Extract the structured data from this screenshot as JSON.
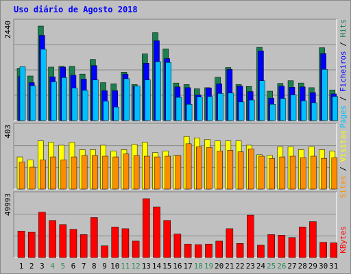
{
  "title": "Uso diário de Agosto 2018",
  "colors": {
    "hits": "#1b7f4f",
    "files": "#0000ff",
    "pages": "#00bfff",
    "visits": "#ffff00",
    "sites": "#ff8c00",
    "kbytes": "#ff0000",
    "day_normal": "#000000",
    "day_weekend": "#2e8b57",
    "grid": "#888888"
  },
  "chart_data": [
    {
      "type": "bar",
      "name": "hits-files-pages",
      "max_label": "2440",
      "legend": [
        "Pages",
        "Ficheiros",
        "Hits"
      ],
      "categories": [
        "1",
        "2",
        "3",
        "4",
        "5",
        "6",
        "7",
        "8",
        "9",
        "10",
        "11",
        "12",
        "13",
        "14",
        "15",
        "16",
        "17",
        "18",
        "19",
        "20",
        "21",
        "22",
        "23",
        "24",
        "25",
        "26",
        "27",
        "28",
        "29",
        "30",
        "31"
      ],
      "ylim": [
        0,
        2440
      ],
      "series": [
        {
          "name": "Hits",
          "values": [
            1350,
            1150,
            2440,
            1380,
            1400,
            1400,
            1200,
            1580,
            980,
            950,
            1250,
            930,
            1720,
            2270,
            1850,
            970,
            930,
            820,
            850,
            1120,
            1370,
            930,
            880,
            1890,
            760,
            960,
            1030,
            970,
            850,
            1880,
            790
          ]
        },
        {
          "name": "Ficheiros",
          "values": [
            1140,
            980,
            2200,
            1130,
            1380,
            1170,
            1070,
            1420,
            770,
            770,
            1200,
            890,
            1480,
            2060,
            1600,
            870,
            850,
            660,
            840,
            950,
            1320,
            890,
            750,
            1800,
            580,
            890,
            860,
            870,
            720,
            1730,
            690
          ]
        },
        {
          "name": "Pages",
          "values": [
            1390,
            900,
            1840,
            1000,
            1110,
            840,
            780,
            1050,
            500,
            350,
            1080,
            890,
            1050,
            1520,
            1500,
            600,
            420,
            610,
            620,
            700,
            710,
            480,
            530,
            1030,
            420,
            570,
            660,
            510,
            460,
            1320,
            620
          ]
        }
      ]
    },
    {
      "type": "bar",
      "name": "visits-sites",
      "max_label": "403",
      "legend": [
        "Sites",
        "Visitas"
      ],
      "categories": [
        "1",
        "2",
        "3",
        "4",
        "5",
        "6",
        "7",
        "8",
        "9",
        "10",
        "11",
        "12",
        "13",
        "14",
        "15",
        "16",
        "17",
        "18",
        "19",
        "20",
        "21",
        "22",
        "23",
        "24",
        "25",
        "26",
        "27",
        "28",
        "29",
        "30",
        "31"
      ],
      "ylim": [
        0,
        403
      ],
      "series": [
        {
          "name": "Visitas",
          "values": [
            220,
            200,
            330,
            320,
            300,
            320,
            270,
            270,
            300,
            260,
            270,
            305,
            320,
            250,
            260,
            230,
            360,
            350,
            340,
            330,
            330,
            330,
            300,
            235,
            230,
            290,
            290,
            270,
            290,
            270,
            260
          ]
        },
        {
          "name": "Sites",
          "values": [
            185,
            150,
            200,
            220,
            200,
            220,
            230,
            230,
            225,
            220,
            240,
            230,
            225,
            220,
            225,
            230,
            310,
            290,
            285,
            260,
            265,
            255,
            275,
            225,
            210,
            220,
            225,
            215,
            225,
            210,
            215
          ]
        }
      ]
    },
    {
      "type": "bar",
      "name": "kbytes",
      "max_label": "49993",
      "legend": [
        "KBytes"
      ],
      "categories": [
        "1",
        "2",
        "3",
        "4",
        "5",
        "6",
        "7",
        "8",
        "9",
        "10",
        "11",
        "12",
        "13",
        "14",
        "15",
        "16",
        "17",
        "18",
        "19",
        "20",
        "21",
        "22",
        "23",
        "24",
        "25",
        "26",
        "27",
        "28",
        "29",
        "30",
        "31"
      ],
      "ylim": [
        0,
        49993
      ],
      "series": [
        {
          "name": "KBytes",
          "values": [
            22500,
            21500,
            38500,
            31500,
            28000,
            24000,
            19500,
            34000,
            10000,
            26000,
            24500,
            14000,
            50000,
            43000,
            31500,
            20000,
            11500,
            11000,
            11500,
            14000,
            24500,
            12000,
            36000,
            10500,
            19500,
            19000,
            17000,
            26000,
            30500,
            13000,
            12500
          ]
        }
      ]
    }
  ],
  "day_labels": [
    "1",
    "2",
    "3",
    "4",
    "5",
    "6",
    "7",
    "8",
    "9",
    "10",
    "11",
    "12",
    "13",
    "14",
    "15",
    "16",
    "17",
    "18",
    "19",
    "20",
    "21",
    "22",
    "23",
    "24",
    "25",
    "26",
    "27",
    "28",
    "29",
    "30",
    "31"
  ],
  "weekend_days": [
    4,
    5,
    11,
    12,
    18,
    19,
    25,
    26
  ]
}
